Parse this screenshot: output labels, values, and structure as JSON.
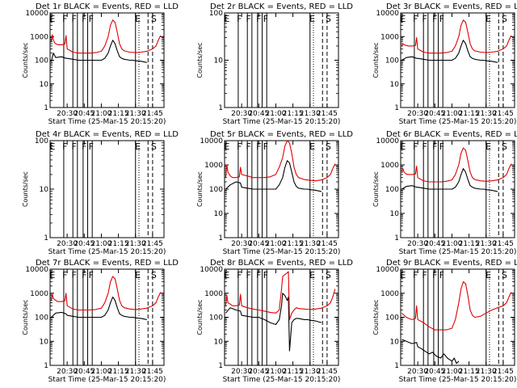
{
  "figure": {
    "type": "line",
    "xlabel": "Start Time (25-Mar-15 20:15:20)",
    "ylabel": "Counts/sec",
    "x_ticks": [
      "20:30",
      "20:45",
      "21:00",
      "21:15",
      "21:30",
      "21:45"
    ],
    "y_ticks": [
      "1",
      "10",
      "100",
      "1000",
      "10000"
    ],
    "x_range": [
      "20:15",
      "21:55"
    ],
    "y_scale": "log",
    "series_colors": {
      "events": "#000000",
      "lld": "#e00000"
    },
    "axis_color": "#000000",
    "grid": false
  },
  "chart_data": [
    {
      "type": "line",
      "title": "Det 1r BLACK = Events, RED = LLD",
      "ylim": [
        1,
        10000
      ],
      "markers": [
        "E",
        "F",
        "F",
        "F",
        "F",
        "E",
        "S"
      ],
      "series": [
        {
          "x": [
            "20:16",
            "20:18",
            "20:20",
            "20:25",
            "20:29",
            "20:30",
            "20:35",
            "20:40",
            "20:45",
            "20:50",
            "20:55",
            "21:00",
            "21:03",
            "21:06",
            "21:08",
            "21:10",
            "21:12",
            "21:14",
            "21:16",
            "21:18",
            "21:20",
            "21:25",
            "21:28",
            "21:30",
            "21:35",
            "21:40"
          ],
          "y": [
            90,
            200,
            130,
            140,
            120,
            120,
            110,
            100,
            100,
            100,
            100,
            100,
            120,
            200,
            400,
            700,
            500,
            250,
            140,
            120,
            110,
            100,
            100,
            95,
            90,
            80
          ]
        },
        {
          "x": [
            "20:16",
            "20:17",
            "20:18",
            "20:19",
            "20:20",
            "20:22",
            "20:25",
            "20:28",
            "20:29",
            "20:30",
            "20:35",
            "20:40",
            "20:45",
            "20:50",
            "20:55",
            "21:00",
            "21:03",
            "21:06",
            "21:08",
            "21:10",
            "21:12",
            "21:14",
            "21:16",
            "21:18",
            "21:20",
            "21:25",
            "21:30",
            "21:35",
            "21:40",
            "21:45",
            "21:48",
            "21:50",
            "21:52"
          ],
          "y": [
            600,
            1200,
            700,
            550,
            500,
            450,
            450,
            480,
            1100,
            300,
            220,
            200,
            200,
            200,
            210,
            240,
            400,
            1000,
            3000,
            5000,
            4000,
            1500,
            500,
            300,
            250,
            220,
            210,
            220,
            240,
            300,
            400,
            700,
            1100
          ]
        }
      ]
    },
    {
      "type": "line",
      "title": "Det 2r BLACK = Events, RED = LLD",
      "ylim": [
        1,
        100
      ],
      "markers": [
        "E",
        "F",
        "F",
        "F",
        "F",
        "E",
        "S"
      ],
      "series": []
    },
    {
      "type": "line",
      "title": "Det 3r BLACK = Events, RED = LLD",
      "ylim": [
        1,
        10000
      ],
      "markers": [
        "E",
        "F",
        "F",
        "F",
        "F",
        "E",
        "S"
      ],
      "series": [
        {
          "x": [
            "20:16",
            "20:20",
            "20:25",
            "20:29",
            "20:30",
            "20:35",
            "20:40",
            "20:45",
            "20:50",
            "20:55",
            "21:00",
            "21:03",
            "21:06",
            "21:08",
            "21:10",
            "21:12",
            "21:14",
            "21:16",
            "21:18",
            "21:20",
            "21:25",
            "21:28",
            "21:30",
            "21:35",
            "21:40"
          ],
          "y": [
            100,
            130,
            140,
            120,
            120,
            110,
            100,
            100,
            100,
            100,
            100,
            120,
            200,
            400,
            700,
            500,
            250,
            140,
            120,
            110,
            100,
            100,
            95,
            90,
            80
          ]
        },
        {
          "x": [
            "20:16",
            "20:17",
            "20:18",
            "20:20",
            "20:22",
            "20:25",
            "20:28",
            "20:29",
            "20:30",
            "20:35",
            "20:40",
            "20:45",
            "20:50",
            "20:55",
            "21:00",
            "21:03",
            "21:06",
            "21:08",
            "21:10",
            "21:12",
            "21:14",
            "21:16",
            "21:18",
            "21:20",
            "21:25",
            "21:30",
            "21:35",
            "21:40",
            "21:45",
            "21:48",
            "21:50",
            "21:52"
          ],
          "y": [
            400,
            500,
            450,
            420,
            400,
            400,
            420,
            900,
            300,
            220,
            200,
            200,
            200,
            210,
            240,
            400,
            1000,
            3000,
            5000,
            4000,
            1500,
            500,
            300,
            250,
            220,
            210,
            220,
            240,
            300,
            400,
            700,
            1100
          ]
        }
      ]
    },
    {
      "type": "line",
      "title": "Det 4r BLACK = Events, RED = LLD",
      "ylim": [
        1,
        100
      ],
      "markers": [
        "E",
        "F",
        "F",
        "F",
        "F",
        "E",
        "S"
      ],
      "series": []
    },
    {
      "type": "line",
      "title": "Det 5r BLACK = Events, RED = LLD",
      "ylim": [
        1,
        10000
      ],
      "markers": [
        "E",
        "F",
        "F",
        "F",
        "F",
        "E",
        "S"
      ],
      "series": [
        {
          "x": [
            "20:16",
            "20:20",
            "20:25",
            "20:29",
            "20:30",
            "20:35",
            "20:40",
            "20:45",
            "20:50",
            "20:55",
            "21:00",
            "21:03",
            "21:06",
            "21:08",
            "21:10",
            "21:12",
            "21:14",
            "21:16",
            "21:18",
            "21:20",
            "21:25",
            "21:28",
            "21:30",
            "21:35",
            "21:40"
          ],
          "y": [
            100,
            150,
            200,
            180,
            120,
            110,
            100,
            100,
            100,
            100,
            100,
            150,
            300,
            800,
            1500,
            1200,
            500,
            200,
            130,
            110,
            100,
            100,
            95,
            90,
            80
          ]
        },
        {
          "x": [
            "20:16",
            "20:17",
            "20:18",
            "20:20",
            "20:22",
            "20:25",
            "20:28",
            "20:29",
            "20:30",
            "20:35",
            "20:40",
            "20:45",
            "20:50",
            "20:55",
            "21:00",
            "21:03",
            "21:06",
            "21:08",
            "21:10",
            "21:12",
            "21:14",
            "21:16",
            "21:18",
            "21:20",
            "21:25",
            "21:30",
            "21:35",
            "21:40",
            "21:45",
            "21:48",
            "21:50",
            "21:52"
          ],
          "y": [
            300,
            1000,
            500,
            350,
            300,
            300,
            320,
            800,
            400,
            350,
            300,
            300,
            300,
            320,
            400,
            800,
            2000,
            6000,
            10000,
            8000,
            3000,
            800,
            400,
            300,
            250,
            230,
            220,
            240,
            300,
            400,
            700,
            1100
          ]
        }
      ]
    },
    {
      "type": "line",
      "title": "Det 6r BLACK = Events, RED = LLD",
      "ylim": [
        1,
        10000
      ],
      "markers": [
        "E",
        "F",
        "F",
        "F",
        "F",
        "E",
        "S"
      ],
      "series": [
        {
          "x": [
            "20:16",
            "20:20",
            "20:25",
            "20:29",
            "20:30",
            "20:35",
            "20:40",
            "20:45",
            "20:50",
            "20:55",
            "21:00",
            "21:03",
            "21:06",
            "21:08",
            "21:10",
            "21:12",
            "21:14",
            "21:16",
            "21:18",
            "21:20",
            "21:25",
            "21:28",
            "21:30",
            "21:35",
            "21:40"
          ],
          "y": [
            100,
            130,
            140,
            120,
            120,
            110,
            100,
            100,
            100,
            100,
            100,
            120,
            200,
            400,
            700,
            500,
            250,
            140,
            120,
            110,
            100,
            100,
            95,
            90,
            80
          ]
        },
        {
          "x": [
            "20:16",
            "20:17",
            "20:18",
            "20:20",
            "20:22",
            "20:25",
            "20:28",
            "20:29",
            "20:30",
            "20:35",
            "20:40",
            "20:45",
            "20:50",
            "20:55",
            "21:00",
            "21:03",
            "21:06",
            "21:08",
            "21:10",
            "21:12",
            "21:14",
            "21:16",
            "21:18",
            "21:20",
            "21:25",
            "21:30",
            "21:35",
            "21:40",
            "21:45",
            "21:48",
            "21:50",
            "21:52"
          ],
          "y": [
            500,
            700,
            500,
            420,
            400,
            400,
            420,
            900,
            300,
            220,
            200,
            200,
            200,
            210,
            240,
            400,
            1000,
            3000,
            5000,
            4000,
            1500,
            500,
            300,
            250,
            220,
            210,
            220,
            240,
            300,
            400,
            700,
            1100
          ]
        }
      ]
    },
    {
      "type": "line",
      "title": "Det 7r BLACK = Events, RED = LLD",
      "ylim": [
        1,
        10000
      ],
      "markers": [
        "E",
        "F",
        "F",
        "F",
        "F",
        "E",
        "S"
      ],
      "series": [
        {
          "x": [
            "20:16",
            "20:20",
            "20:25",
            "20:29",
            "20:30",
            "20:35",
            "20:40",
            "20:45",
            "20:50",
            "20:55",
            "21:00",
            "21:03",
            "21:06",
            "21:08",
            "21:10",
            "21:12",
            "21:14",
            "21:16",
            "21:18",
            "21:20",
            "21:25",
            "21:28",
            "21:30",
            "21:35",
            "21:40"
          ],
          "y": [
            100,
            150,
            160,
            140,
            120,
            110,
            100,
            100,
            100,
            100,
            100,
            120,
            200,
            400,
            700,
            500,
            250,
            140,
            120,
            110,
            100,
            100,
            95,
            90,
            80
          ]
        },
        {
          "x": [
            "20:16",
            "20:17",
            "20:18",
            "20:20",
            "20:22",
            "20:25",
            "20:28",
            "20:29",
            "20:30",
            "20:35",
            "20:40",
            "20:45",
            "20:50",
            "20:55",
            "21:00",
            "21:03",
            "21:06",
            "21:08",
            "21:10",
            "21:12",
            "21:14",
            "21:16",
            "21:18",
            "21:20",
            "21:25",
            "21:30",
            "21:35",
            "21:40",
            "21:45",
            "21:48",
            "21:50",
            "21:52"
          ],
          "y": [
            500,
            900,
            600,
            500,
            450,
            450,
            480,
            1000,
            300,
            220,
            200,
            200,
            200,
            210,
            240,
            400,
            1000,
            3000,
            5000,
            4000,
            1500,
            500,
            300,
            250,
            220,
            210,
            220,
            240,
            300,
            400,
            700,
            1100
          ]
        }
      ]
    },
    {
      "type": "line",
      "title": "Det 8r BLACK = Events, RED = LLD",
      "ylim": [
        1,
        10000
      ],
      "markers": [
        "E",
        "F",
        "F",
        "F",
        "F",
        "E",
        "S"
      ],
      "series": [
        {
          "x": [
            "20:16",
            "20:20",
            "20:25",
            "20:29",
            "20:30",
            "20:35",
            "20:40",
            "20:45",
            "20:50",
            "20:55",
            "21:00",
            "21:03",
            "21:05",
            "21:06",
            "21:08",
            "21:10",
            "21:11",
            "21:12",
            "21:14",
            "21:16",
            "21:18",
            "21:20",
            "21:25",
            "21:28",
            "21:30",
            "21:35",
            "21:40"
          ],
          "y": [
            150,
            250,
            200,
            180,
            120,
            110,
            100,
            100,
            80,
            60,
            50,
            80,
            300,
            1000,
            800,
            500,
            700,
            4,
            60,
            80,
            90,
            90,
            80,
            80,
            75,
            70,
            60
          ]
        },
        {
          "x": [
            "20:16",
            "20:17",
            "20:18",
            "20:20",
            "20:22",
            "20:25",
            "20:28",
            "20:29",
            "20:30",
            "20:35",
            "20:40",
            "20:45",
            "20:50",
            "20:55",
            "21:00",
            "21:03",
            "21:05",
            "21:06",
            "21:08",
            "21:10",
            "21:11",
            "21:12",
            "21:14",
            "21:16",
            "21:18",
            "21:20",
            "21:25",
            "21:30",
            "21:35",
            "21:40",
            "21:45",
            "21:48",
            "21:50",
            "21:52"
          ],
          "y": [
            300,
            800,
            400,
            350,
            300,
            300,
            320,
            900,
            300,
            250,
            220,
            200,
            180,
            160,
            150,
            200,
            1500,
            5000,
            6000,
            7000,
            8000,
            80,
            150,
            200,
            250,
            230,
            220,
            210,
            220,
            240,
            300,
            400,
            700,
            1500
          ]
        }
      ]
    },
    {
      "type": "line",
      "title": "Det 9r BLACK = Events, RED = LLD",
      "ylim": [
        1,
        10000
      ],
      "markers": [
        "E",
        "F",
        "F",
        "F",
        "F",
        "E",
        "S"
      ],
      "series": [
        {
          "x": [
            "20:16",
            "20:20",
            "20:25",
            "20:29",
            "20:30",
            "20:33",
            "20:36",
            "20:40",
            "20:43",
            "20:46",
            "20:50",
            "20:53",
            "20:56",
            "21:00",
            "21:02",
            "21:04",
            "21:06"
          ],
          "y": [
            12,
            10,
            8,
            9,
            6,
            5,
            4,
            3,
            3.5,
            2.5,
            2,
            3,
            2,
            1.5,
            2,
            1.2,
            1.5
          ]
        },
        {
          "x": [
            "20:16",
            "20:18",
            "20:20",
            "20:22",
            "20:25",
            "20:28",
            "20:29",
            "20:30",
            "20:35",
            "20:40",
            "20:45",
            "20:50",
            "20:55",
            "21:00",
            "21:03",
            "21:06",
            "21:08",
            "21:10",
            "21:12",
            "21:14",
            "21:16",
            "21:18",
            "21:20",
            "21:25",
            "21:30",
            "21:35",
            "21:40",
            "21:45",
            "21:48",
            "21:50",
            "21:52"
          ],
          "y": [
            150,
            120,
            100,
            90,
            80,
            90,
            300,
            80,
            60,
            40,
            30,
            30,
            30,
            35,
            80,
            400,
            1500,
            3000,
            2500,
            800,
            200,
            120,
            100,
            110,
            150,
            200,
            250,
            300,
            400,
            700,
            1100
          ]
        }
      ]
    }
  ]
}
